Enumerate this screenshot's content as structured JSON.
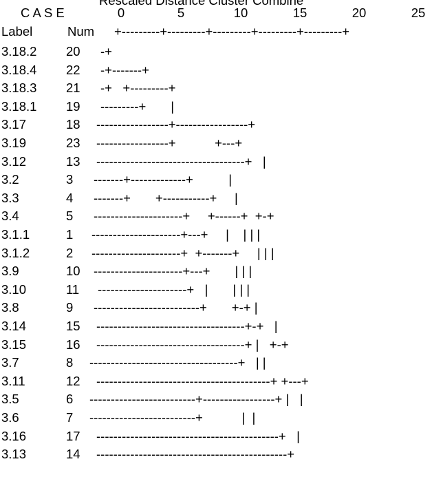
{
  "header": {
    "title": "Rescaled Distance Cluster Combine",
    "case_label": "C A S E",
    "col_label": "Label",
    "col_num": "Num",
    "scale_ticks": [
      "0",
      "5",
      "10",
      "15",
      "20",
      "25"
    ],
    "scale_line": "+---------+---------+---------+---------+---------+"
  },
  "rows": [
    {
      "label": "3.18.2",
      "num": "20",
      "tree": "-+"
    },
    {
      "label": "3.18.4",
      "num": "22",
      "tree": "-+-------+"
    },
    {
      "label": "3.18.3",
      "num": "21",
      "tree": "-+   +---------+"
    },
    {
      "label": "3.18.1",
      "num": "19",
      "tree": "---------+       |"
    },
    {
      "label": "3.17",
      "num": "18",
      "tree": "-----------------+-----------------+"
    },
    {
      "label": "3.19",
      "num": "23",
      "tree": "-----------------+           +---+"
    },
    {
      "label": "3.12",
      "num": "13",
      "tree": "-----------------------------------+   |"
    },
    {
      "label": "3.2",
      "num": "3",
      "tree": "-------+-------------+          |"
    },
    {
      "label": "3.3",
      "num": "4",
      "tree": "-------+       +-----------+     |"
    },
    {
      "label": "3.4",
      "num": "5",
      "tree": "---------------------+     +------+  +-+"
    },
    {
      "label": "3.1.1",
      "num": "1",
      "tree": "---------------------+---+     |    | | |"
    },
    {
      "label": "3.1.2",
      "num": "2",
      "tree": "---------------------+  +-------+     | | |"
    },
    {
      "label": "3.9",
      "num": "10",
      "tree": "---------------------+---+       | | |"
    },
    {
      "label": "3.10",
      "num": "11",
      "tree": "---------------------+   |       | | |"
    },
    {
      "label": "3.8",
      "num": "9",
      "tree": "-------------------------+       +-+ |"
    },
    {
      "label": "3.14",
      "num": "15",
      "tree": "-----------------------------------+-+   |"
    },
    {
      "label": "3.15",
      "num": "16",
      "tree": "-----------------------------------+ |   +-+"
    },
    {
      "label": "3.7",
      "num": "8",
      "tree": "-----------------------------------+   | |"
    },
    {
      "label": "3.11",
      "num": "12",
      "tree": "-----------------------------------------+ +---+"
    },
    {
      "label": "3.5",
      "num": "6",
      "tree": "-------------------------+-----------------+ |   |"
    },
    {
      "label": "3.6",
      "num": "7",
      "tree": "-------------------------+           |  |"
    },
    {
      "label": "3.16",
      "num": "17",
      "tree": "-------------------------------------------+   |"
    },
    {
      "label": "3.13",
      "num": "14",
      "tree": "---------------------------------------------+"
    }
  ]
}
